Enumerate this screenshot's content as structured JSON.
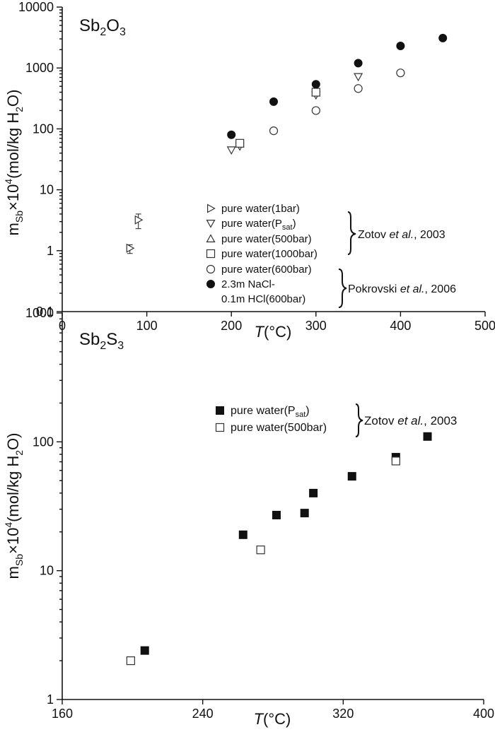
{
  "chart_data": [
    {
      "type": "scatter",
      "yscale": "log",
      "title": "Sb2O3",
      "title_parts": {
        "base1": "Sb",
        "sub1": "2",
        "base2": "O",
        "sub2": "3"
      },
      "xlabel": {
        "italic": "T",
        "rest": "(°C)"
      },
      "ylabel": {
        "m": "m",
        "sub_sb": "Sb",
        "times10": "×10",
        "sup4": "4",
        "unit": "(mol/kg H",
        "sub2": "2",
        "close": "O)"
      },
      "xlim": [
        0,
        500
      ],
      "ylim": [
        0.1,
        10000
      ],
      "xticks": [
        "0",
        "100",
        "200",
        "300",
        "400",
        "500"
      ],
      "yticks": [
        "0.1",
        "1",
        "10",
        "100",
        "1000",
        "10000"
      ],
      "series": [
        {
          "name": "pure water(1bar)",
          "marker": "triangle-right",
          "filled": false,
          "points": [
            {
              "x": 80,
              "y": 1.1,
              "err": [
                0.9,
                1.25
              ]
            },
            {
              "x": 90,
              "y": 3.2,
              "err": [
                2.3,
                4.0
              ]
            }
          ]
        },
        {
          "name": "pure water(Psat)",
          "name_parts": [
            "pure water(P",
            "sat",
            ")"
          ],
          "marker": "triangle-down",
          "filled": false,
          "points": [
            {
              "x": 200,
              "y": 45
            },
            {
              "x": 210,
              "y": 52
            },
            {
              "x": 300,
              "y": 360
            },
            {
              "x": 350,
              "y": 720
            }
          ]
        },
        {
          "name": "pure water(500bar)",
          "marker": "triangle-up",
          "filled": false,
          "points": [
            {
              "x": 210,
              "y": 57
            },
            {
              "x": 300,
              "y": 390
            }
          ]
        },
        {
          "name": "pure water(1000bar)",
          "marker": "square",
          "filled": false,
          "points": [
            {
              "x": 210,
              "y": 58
            },
            {
              "x": 300,
              "y": 400
            }
          ]
        },
        {
          "name": "pure water(600bar)",
          "marker": "circle",
          "filled": false,
          "points": [
            {
              "x": 250,
              "y": 93
            },
            {
              "x": 300,
              "y": 200
            },
            {
              "x": 350,
              "y": 460
            },
            {
              "x": 400,
              "y": 830
            }
          ]
        },
        {
          "name": "2.3m NaCl-0.1m HCl(600bar)",
          "name_lines": [
            "2.3m NaCl-",
            "0.1m HCl(600bar)"
          ],
          "marker": "circle",
          "filled": true,
          "points": [
            {
              "x": 200,
              "y": 80
            },
            {
              "x": 250,
              "y": 280
            },
            {
              "x": 300,
              "y": 540
            },
            {
              "x": 350,
              "y": 1200
            },
            {
              "x": 400,
              "y": 2300
            },
            {
              "x": 450,
              "y": 3100
            }
          ]
        }
      ],
      "references": [
        {
          "name": "Zotov",
          "etal": "et al.",
          "year": ", 2003"
        },
        {
          "name": "Pokrovski",
          "etal": "et al.",
          "year": ", 2006"
        }
      ]
    },
    {
      "type": "scatter",
      "yscale": "log",
      "title": "Sb2S3",
      "title_parts": {
        "base1": "Sb",
        "sub1": "2",
        "base2": "S",
        "sub2": "3"
      },
      "xlabel": {
        "italic": "T",
        "rest": "(°C)"
      },
      "ylabel": {
        "m": "m",
        "sub_sb": "Sb",
        "times10": "×10",
        "sup4": "4",
        "unit": "(mol/kg H",
        "sub2": "2",
        "close": "O)"
      },
      "xlim": [
        160,
        400
      ],
      "ylim": [
        1,
        1000
      ],
      "xticks": [
        "160",
        "240",
        "320",
        "400"
      ],
      "yticks": [
        "1",
        "10",
        "100",
        "1000"
      ],
      "series": [
        {
          "name": "pure water(Psat)",
          "name_parts": [
            "pure water(P",
            "sat",
            ")"
          ],
          "marker": "square",
          "filled": true,
          "points": [
            {
              "x": 207,
              "y": 2.4
            },
            {
              "x": 263,
              "y": 19
            },
            {
              "x": 282,
              "y": 27
            },
            {
              "x": 298,
              "y": 28
            },
            {
              "x": 303,
              "y": 40
            },
            {
              "x": 325,
              "y": 54
            },
            {
              "x": 350,
              "y": 76
            },
            {
              "x": 368,
              "y": 110
            }
          ]
        },
        {
          "name": "pure water(500bar)",
          "marker": "square",
          "filled": false,
          "points": [
            {
              "x": 199,
              "y": 2.0
            },
            {
              "x": 273,
              "y": 14.5
            },
            {
              "x": 350,
              "y": 71
            }
          ]
        }
      ],
      "references": [
        {
          "name": "Zotov",
          "etal": "et al.",
          "year": ", 2003"
        }
      ]
    }
  ]
}
